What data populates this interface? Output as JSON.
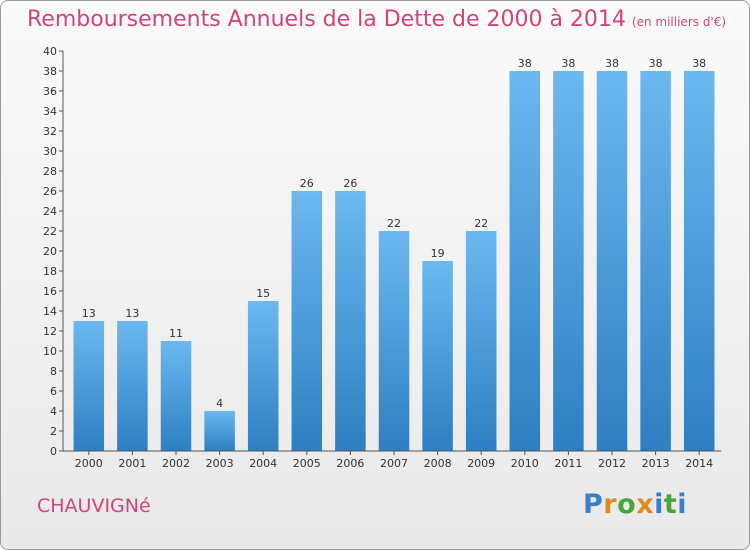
{
  "title": "Remboursements Annuels de la Dette de 2000 à 2014",
  "unit_note": "(en milliers d'€)",
  "commune": "CHAUVIGNé",
  "logo": {
    "letters": [
      "P",
      "r",
      "o",
      "x",
      "i",
      "t",
      "i"
    ],
    "colors": [
      "#3a7fc9",
      "#e08a1e",
      "#4aa63c",
      "#e08a1e",
      "#3a7fc9",
      "#4aa63c",
      "#3a7fc9"
    ]
  },
  "colors": {
    "bar": "#4a9ee0",
    "bar_light": "#6cb8f0",
    "bar_dark": "#2e7fc2",
    "title": "#d0457a"
  },
  "chart_data": {
    "type": "bar",
    "title": "Remboursements Annuels de la Dette de 2000 à 2014",
    "categories": [
      "2000",
      "2001",
      "2002",
      "2003",
      "2004",
      "2005",
      "2006",
      "2007",
      "2008",
      "2009",
      "2010",
      "2011",
      "2012",
      "2013",
      "2014"
    ],
    "values": [
      13,
      13,
      11,
      4,
      15,
      26,
      26,
      22,
      19,
      22,
      38,
      38,
      38,
      38,
      38
    ],
    "ylim": [
      0,
      40
    ],
    "yticks": [
      0,
      2,
      4,
      6,
      8,
      10,
      12,
      14,
      16,
      18,
      20,
      22,
      24,
      26,
      28,
      30,
      32,
      34,
      36,
      38,
      40
    ],
    "grid": false,
    "xlabel": "",
    "ylabel": ""
  }
}
